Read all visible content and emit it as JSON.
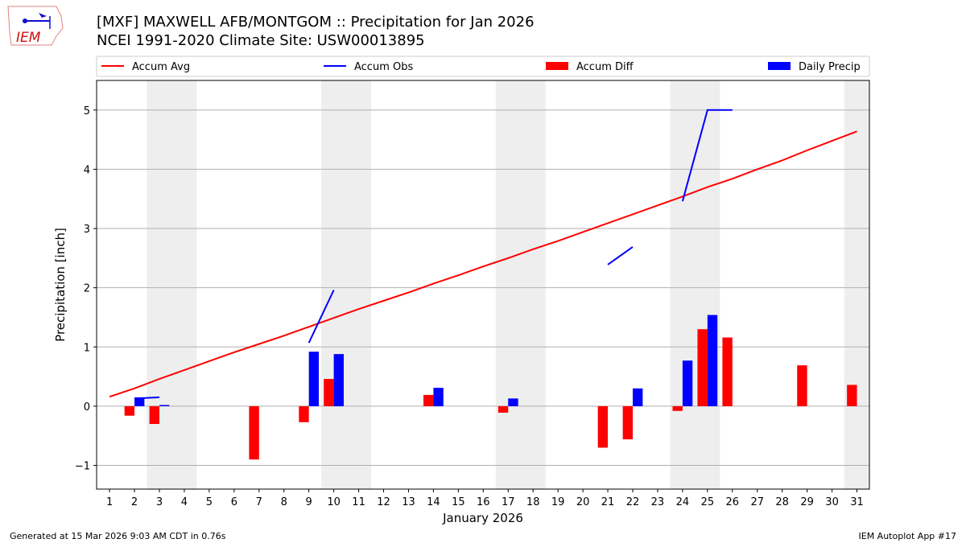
{
  "logo_text": "IEM",
  "footer": {
    "left": "Generated at 15 Mar 2026 9:03 AM CDT in 0.76s",
    "right": "IEM Autoplot App #17"
  },
  "chart_data": {
    "type": "bar",
    "title": "[MXF] MAXWELL AFB/MONTGOM :: Precipitation for Jan 2026",
    "subtitle": "NCEI 1991-2020 Climate Site: USW00013895",
    "xlabel": "January 2026",
    "ylabel": "Precipitation [inch]",
    "xlim": [
      0.48,
      31.5
    ],
    "ylim": [
      -1.4,
      5.5
    ],
    "yticks": [
      -1,
      0,
      1,
      2,
      3,
      4,
      5
    ],
    "ytick_labels": [
      "−1",
      "0",
      "1",
      "2",
      "3",
      "4",
      "5"
    ],
    "x": [
      1,
      2,
      3,
      4,
      5,
      6,
      7,
      8,
      9,
      10,
      11,
      12,
      13,
      14,
      15,
      16,
      17,
      18,
      19,
      20,
      21,
      22,
      23,
      24,
      25,
      26,
      27,
      28,
      29,
      30,
      31
    ],
    "grid": "y",
    "legend_placement": "top",
    "weekend_shading": [
      [
        2.5,
        4.5
      ],
      [
        9.5,
        11.5
      ],
      [
        16.5,
        18.5
      ],
      [
        23.5,
        25.5
      ],
      [
        30.5,
        31.5
      ]
    ],
    "shade_color": "#eeeeee",
    "series": [
      {
        "name": "Accum Avg",
        "kind": "line",
        "color": "#ff0000",
        "values": [
          0.16,
          0.3,
          0.46,
          0.61,
          0.76,
          0.91,
          1.05,
          1.19,
          1.34,
          1.49,
          1.64,
          1.78,
          1.92,
          2.07,
          2.21,
          2.36,
          2.5,
          2.65,
          2.79,
          2.94,
          3.09,
          3.24,
          3.39,
          3.54,
          3.7,
          3.84,
          4.0,
          4.15,
          4.32,
          4.48,
          4.64
        ]
      },
      {
        "name": "Accum Obs",
        "kind": "line",
        "color": "#0000ff",
        "values": [
          null,
          0.13,
          0.15,
          null,
          null,
          null,
          null,
          null,
          1.07,
          1.96,
          null,
          null,
          null,
          null,
          null,
          null,
          null,
          null,
          null,
          null,
          2.39,
          2.69,
          null,
          3.46,
          5.0,
          5.0,
          null,
          null,
          null,
          null,
          null
        ]
      },
      {
        "name": "Accum Diff",
        "kind": "bar",
        "color": "#ff0000",
        "offset": -0.2,
        "values": [
          0,
          -0.16,
          -0.3,
          0,
          0,
          0,
          -0.9,
          0,
          -0.27,
          0.46,
          0,
          0,
          0,
          0.19,
          0,
          0,
          -0.11,
          0,
          0,
          0,
          -0.7,
          -0.56,
          0,
          -0.08,
          1.3,
          1.16,
          0,
          0,
          0.69,
          0,
          0.36
        ]
      },
      {
        "name": "Daily Precip",
        "kind": "bar",
        "color": "#0000ff",
        "offset": 0.2,
        "values": [
          0,
          0.15,
          0.02,
          0,
          0,
          0,
          0,
          0,
          0.92,
          0.88,
          0,
          0,
          0,
          0.31,
          0,
          0,
          0.13,
          0,
          0,
          0,
          0,
          0.3,
          0,
          0.77,
          1.54,
          0,
          0,
          0,
          0,
          0,
          0
        ]
      }
    ]
  }
}
